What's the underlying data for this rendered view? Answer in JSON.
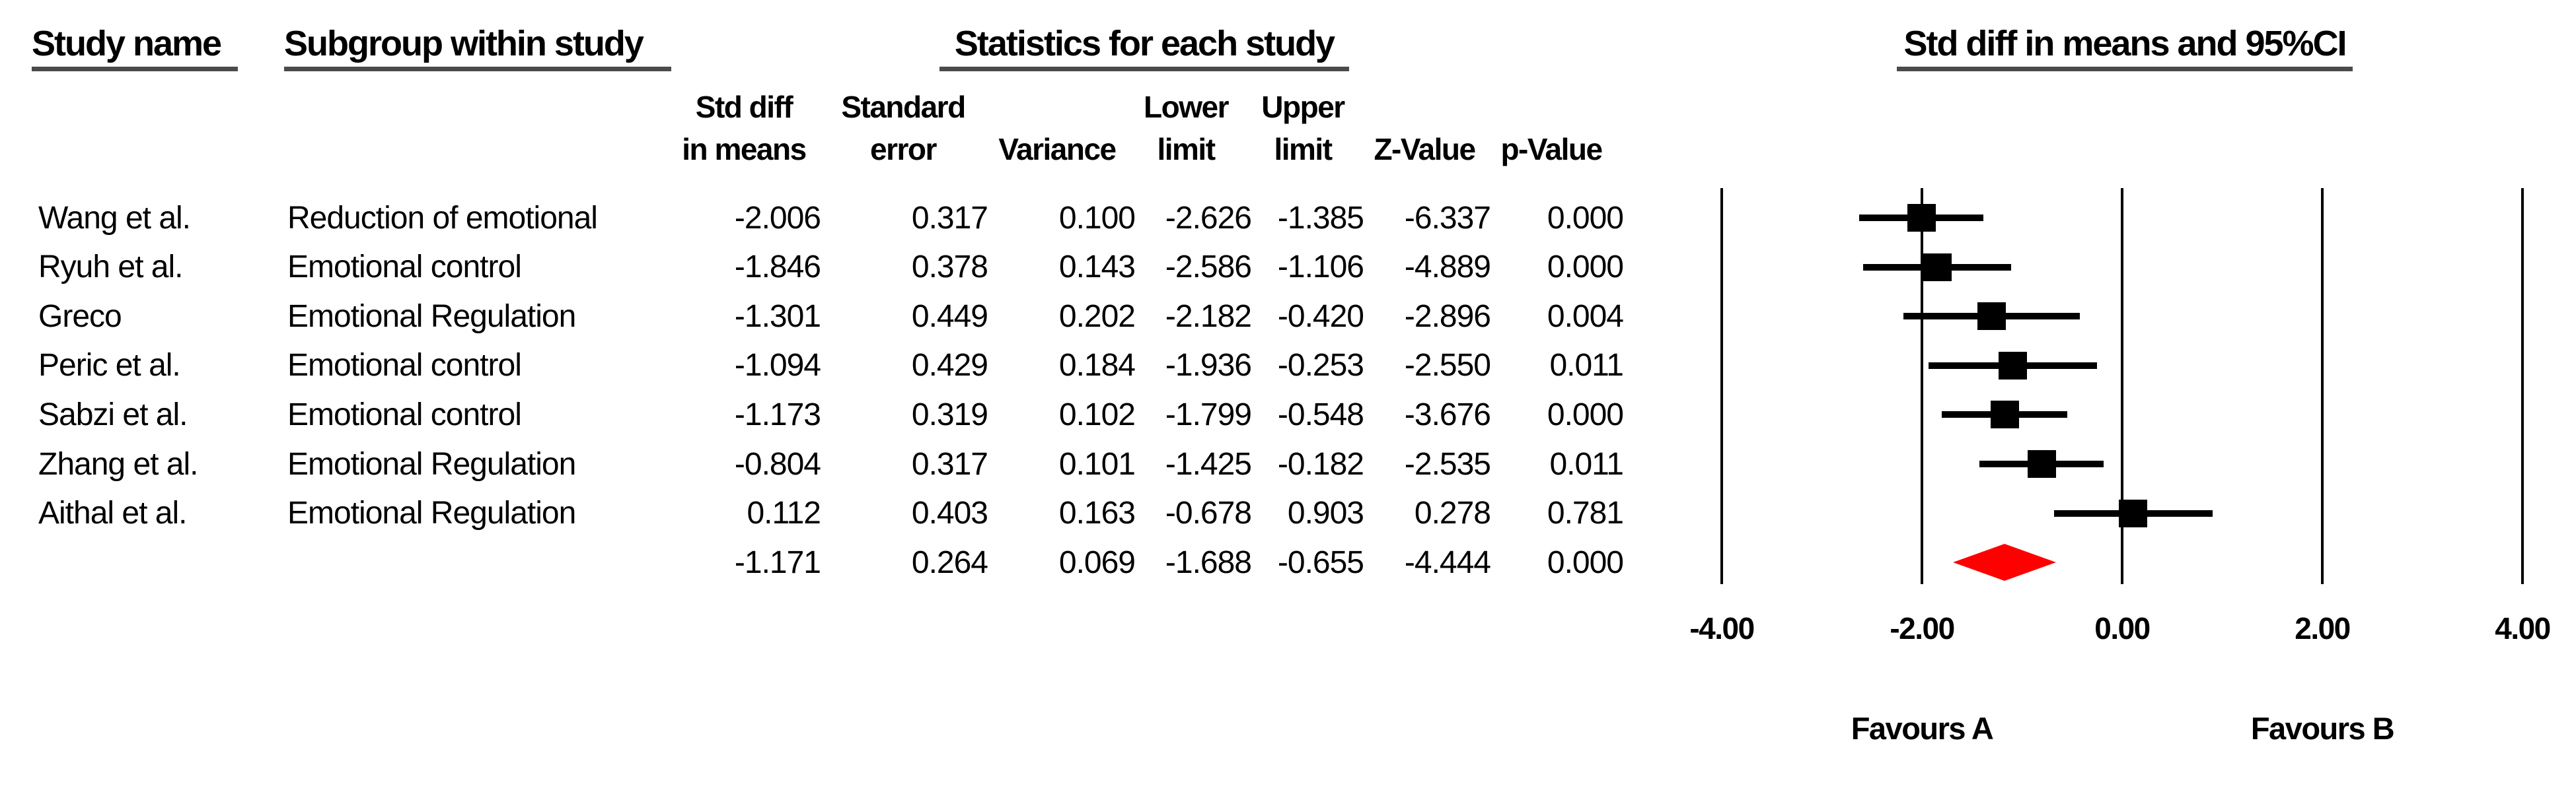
{
  "figure": {
    "columns": {
      "study": "Study name",
      "subgroup": "Subgroup within study",
      "stats_group": "Statistics for each study",
      "plot_group": "Std diff in means and 95%CI"
    },
    "stat_headers": [
      {
        "line1": "Std diff",
        "line2": "in means"
      },
      {
        "line1": "Standard",
        "line2": "error"
      },
      {
        "line1": "",
        "line2": "Variance"
      },
      {
        "line1": "Lower",
        "line2": "limit"
      },
      {
        "line1": "Upper",
        "line2": "limit"
      },
      {
        "line1": "",
        "line2": "Z-Value"
      },
      {
        "line1": "",
        "line2": "p-Value"
      }
    ],
    "footer": {
      "favours_left": "Favours A",
      "favours_right": "Favours B"
    }
  },
  "chart_data": {
    "type": "forest",
    "title": "Std diff in means and 95%CI",
    "xlim": [
      -4,
      4
    ],
    "tick_values": [
      -4,
      -2,
      0,
      2,
      4
    ],
    "tick_labels": [
      "-4.00",
      "-2.00",
      "0.00",
      "2.00",
      "4.00"
    ],
    "grid": true,
    "columns": [
      "Std diff in means",
      "Standard error",
      "Variance",
      "Lower limit",
      "Upper limit",
      "Z-Value",
      "p-Value"
    ],
    "studies": [
      {
        "name": "Wang et al.",
        "subgroup": "Reduction of emotional",
        "mean": -2.006,
        "lower": -2.626,
        "upper": -1.385,
        "cells": [
          "-2.006",
          "0.317",
          "0.100",
          "-2.626",
          "-1.385",
          "-6.337",
          "0.000"
        ]
      },
      {
        "name": "Ryuh et al.",
        "subgroup": "Emotional control",
        "mean": -1.846,
        "lower": -2.586,
        "upper": -1.106,
        "cells": [
          "-1.846",
          "0.378",
          "0.143",
          "-2.586",
          "-1.106",
          "-4.889",
          "0.000"
        ]
      },
      {
        "name": "Greco",
        "subgroup": "Emotional Regulation",
        "mean": -1.301,
        "lower": -2.182,
        "upper": -0.42,
        "cells": [
          "-1.301",
          "0.449",
          "0.202",
          "-2.182",
          "-0.420",
          "-2.896",
          "0.004"
        ]
      },
      {
        "name": "Peric et al.",
        "subgroup": "Emotional control",
        "mean": -1.094,
        "lower": -1.936,
        "upper": -0.253,
        "cells": [
          "-1.094",
          "0.429",
          "0.184",
          "-1.936",
          "-0.253",
          "-2.550",
          "0.011"
        ]
      },
      {
        "name": "Sabzi et al.",
        "subgroup": "Emotional control",
        "mean": -1.173,
        "lower": -1.799,
        "upper": -0.548,
        "cells": [
          "-1.173",
          "0.319",
          "0.102",
          "-1.799",
          "-0.548",
          "-3.676",
          "0.000"
        ]
      },
      {
        "name": "Zhang et al.",
        "subgroup": "Emotional Regulation",
        "mean": -0.804,
        "lower": -1.425,
        "upper": -0.182,
        "cells": [
          "-0.804",
          "0.317",
          "0.101",
          "-1.425",
          "-0.182",
          "-2.535",
          "0.011"
        ]
      },
      {
        "name": "Aithal et al.",
        "subgroup": "Emotional Regulation",
        "mean": 0.112,
        "lower": -0.678,
        "upper": 0.903,
        "cells": [
          "0.112",
          "0.403",
          "0.163",
          "-0.678",
          "0.903",
          "0.278",
          "0.781"
        ]
      }
    ],
    "summary": {
      "name": "",
      "subgroup": "",
      "mean": -1.171,
      "lower": -1.688,
      "upper": -0.655,
      "cells": [
        "-1.171",
        "0.264",
        "0.069",
        "-1.688",
        "-0.655",
        "-4.444",
        "0.000"
      ]
    },
    "colors": {
      "marker": "#000000",
      "diamond": "#FF0000",
      "grid": "#000000",
      "text": "#000000",
      "underline": "#4b4b4b"
    }
  }
}
